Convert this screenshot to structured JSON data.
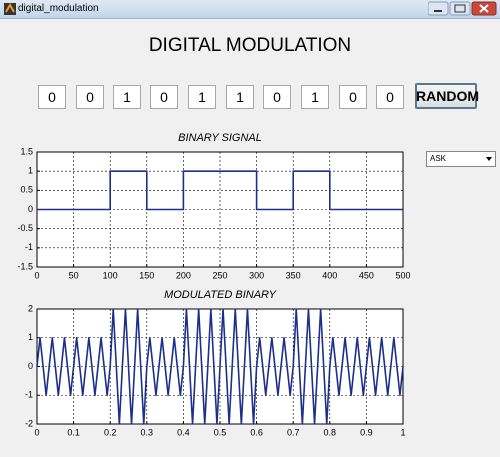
{
  "window": {
    "title": "digital_modulation"
  },
  "heading": "DIGITAL MODULATION",
  "bits": [
    0,
    0,
    1,
    0,
    1,
    1,
    0,
    1,
    0,
    0
  ],
  "button": "RANDOM",
  "dropdown": "ASK",
  "chart_data": [
    {
      "type": "line",
      "title": "BINARY SIGNAL",
      "x": [
        0,
        100,
        100,
        150,
        150,
        200,
        200,
        300,
        300,
        350,
        350,
        400,
        400,
        500
      ],
      "series": [
        {
          "color": "#1c2f8c",
          "values": [
            0,
            0,
            1,
            1,
            0,
            0,
            1,
            1,
            0,
            0,
            1,
            1,
            0,
            0
          ]
        }
      ],
      "xlim": [
        0,
        500
      ],
      "ylim": [
        -1.5,
        1.5
      ],
      "xticks": [
        0,
        50,
        100,
        150,
        200,
        250,
        300,
        350,
        400,
        450,
        500
      ],
      "yticks": [
        -1.5,
        -1,
        -0.5,
        0,
        0.5,
        1,
        1.5
      ],
      "grid": true
    },
    {
      "type": "line",
      "title": "MODULATED BINARY",
      "x": [
        0,
        0.0083,
        0.0167,
        0.025,
        0.0333,
        0.0417,
        0.05,
        0.0583,
        0.0667,
        0.075,
        0.0833,
        0.0917,
        0.1,
        0.1083,
        0.1167,
        0.125,
        0.1333,
        0.1417,
        0.15,
        0.1583,
        0.1667,
        0.175,
        0.1833,
        0.1917,
        0.2,
        0.2083,
        0.2167,
        0.225,
        0.2333,
        0.2417,
        0.25,
        0.2583,
        0.2667,
        0.275,
        0.2833,
        0.2917,
        0.3,
        0.3083,
        0.3167,
        0.325,
        0.3333,
        0.3417,
        0.35,
        0.3583,
        0.3667,
        0.375,
        0.3833,
        0.3917,
        0.4,
        0.4083,
        0.4167,
        0.425,
        0.4333,
        0.4417,
        0.45,
        0.4583,
        0.4667,
        0.475,
        0.4833,
        0.4917,
        0.5,
        0.5083,
        0.5167,
        0.525,
        0.5333,
        0.5417,
        0.55,
        0.5583,
        0.5667,
        0.575,
        0.5833,
        0.5917,
        0.6,
        0.6083,
        0.6167,
        0.625,
        0.6333,
        0.6417,
        0.65,
        0.6583,
        0.6667,
        0.675,
        0.6833,
        0.6917,
        0.7,
        0.7083,
        0.7167,
        0.725,
        0.7333,
        0.7417,
        0.75,
        0.7583,
        0.7667,
        0.775,
        0.7833,
        0.7917,
        0.8,
        0.8083,
        0.8167,
        0.825,
        0.8333,
        0.8417,
        0.85,
        0.8583,
        0.8667,
        0.875,
        0.8833,
        0.8917,
        0.9,
        0.9083,
        0.9167,
        0.925,
        0.9333,
        0.9417,
        0.95,
        0.9583,
        0.9667,
        0.975,
        0.9833,
        0.9917,
        1
      ],
      "series": [
        {
          "color": "#1c2f8c",
          "values": [
            0,
            1,
            0,
            -1,
            0,
            1,
            0,
            -1,
            0,
            1,
            0,
            -1,
            0,
            1,
            0,
            -1,
            0,
            1,
            0,
            -1,
            0,
            1,
            0,
            -1,
            0,
            2,
            0,
            -2,
            0,
            2,
            0,
            -2,
            0,
            2,
            0,
            -2,
            0,
            1,
            0,
            -1,
            0,
            1,
            0,
            -1,
            0,
            1,
            0,
            -1,
            0,
            2,
            0,
            -2,
            0,
            2,
            0,
            -2,
            0,
            2,
            0,
            -2,
            0,
            2,
            0,
            -2,
            0,
            2,
            0,
            -2,
            0,
            2,
            0,
            -2,
            0,
            1,
            0,
            -1,
            0,
            1,
            0,
            -1,
            0,
            1,
            0,
            -1,
            0,
            2,
            0,
            -2,
            0,
            2,
            0,
            -2,
            0,
            2,
            0,
            -2,
            0,
            1,
            0,
            -1,
            0,
            1,
            0,
            -1,
            0,
            1,
            0,
            -1,
            0,
            1,
            0,
            -1,
            0,
            1,
            0,
            -1,
            0,
            1,
            0,
            -1,
            0
          ]
        }
      ],
      "xlim": [
        0,
        1
      ],
      "ylim": [
        -2,
        2
      ],
      "xticks": [
        0,
        0.1,
        0.2,
        0.3,
        0.4,
        0.5,
        0.6,
        0.7,
        0.8,
        0.9,
        1
      ],
      "yticks": [
        -2,
        -1,
        0,
        1,
        2
      ],
      "grid": true
    }
  ]
}
